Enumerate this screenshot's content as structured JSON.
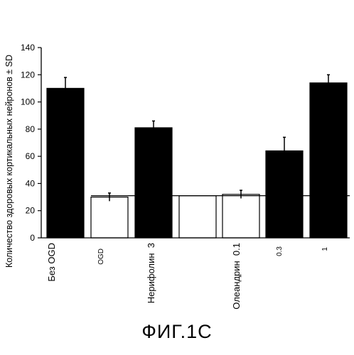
{
  "chart_data": {
    "type": "bar",
    "ylabel": "Количество здоровых кортикальных нейронов ± SD",
    "ylim": [
      0,
      140
    ],
    "yticks": [
      0,
      20,
      40,
      60,
      80,
      100,
      120,
      140
    ],
    "grid": false,
    "reference_line": 31,
    "bars": [
      {
        "label": "Без OGD",
        "value": 110,
        "sd": 8,
        "fill": "black"
      },
      {
        "label": "OGD",
        "value": 30,
        "sd": 3,
        "fill": "white"
      },
      {
        "label": "Нерифолин  3",
        "value": 81,
        "sd": 5,
        "fill": "black"
      },
      {
        "label": "",
        "value": 31,
        "sd": 0,
        "fill": "white"
      },
      {
        "label": "Олеандрин  0.1",
        "value": 32,
        "sd": 3,
        "fill": "white"
      },
      {
        "label": "0.3",
        "value": 64,
        "sd": 10,
        "fill": "black"
      },
      {
        "label": "1",
        "value": 114,
        "sd": 6,
        "fill": "black"
      }
    ]
  },
  "figure_caption": "ФИГ.1С"
}
